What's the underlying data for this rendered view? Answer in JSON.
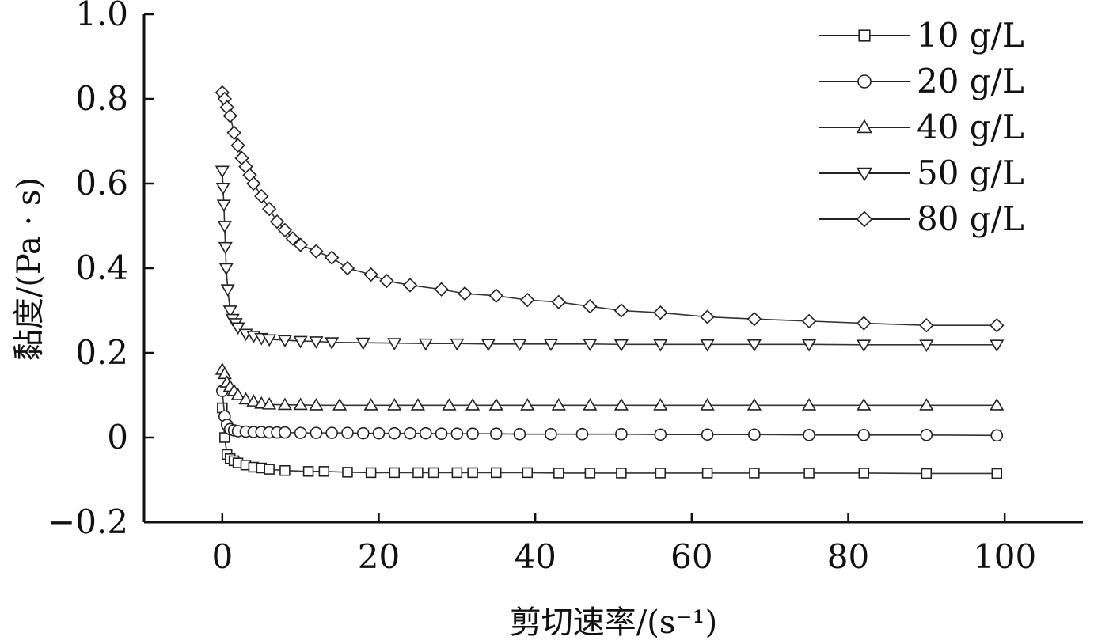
{
  "chart_data": {
    "type": "line",
    "title": "",
    "xlabel": "剪切速率/(s⁻¹)",
    "ylabel": "黏度/(Pa · s)",
    "xlim": [
      -10,
      110
    ],
    "ylim": [
      -0.2,
      1.0
    ],
    "x_ticks": [
      0,
      20,
      40,
      60,
      80,
      100
    ],
    "y_ticks": [
      -0.2,
      0,
      0.2,
      0.4,
      0.6,
      0.8,
      1.0
    ],
    "x_tick_labels": [
      "0",
      "20",
      "40",
      "60",
      "80",
      "100"
    ],
    "y_tick_labels": [
      "−0.2",
      "0",
      "0.2",
      "0.4",
      "0.6",
      "0.8",
      "1.0"
    ],
    "grid": false,
    "legend_position": "top-right",
    "series": [
      {
        "name": "10 g/L",
        "marker": "square",
        "x": [
          0,
          0.3,
          0.6,
          1,
          1.5,
          2,
          3,
          4,
          5,
          6,
          8,
          11,
          13,
          16,
          19,
          22,
          25,
          27,
          30,
          32,
          35,
          39,
          43,
          47,
          51,
          56,
          62,
          68,
          75,
          82,
          90,
          99
        ],
        "y": [
          0.07,
          0.0,
          -0.04,
          -0.05,
          -0.055,
          -0.06,
          -0.065,
          -0.07,
          -0.072,
          -0.075,
          -0.078,
          -0.08,
          -0.08,
          -0.082,
          -0.083,
          -0.083,
          -0.083,
          -0.083,
          -0.083,
          -0.083,
          -0.083,
          -0.083,
          -0.084,
          -0.084,
          -0.084,
          -0.084,
          -0.084,
          -0.084,
          -0.084,
          -0.084,
          -0.085,
          -0.085
        ]
      },
      {
        "name": "20 g/L",
        "marker": "circle",
        "x": [
          0,
          0.3,
          0.6,
          1,
          1.5,
          2,
          3,
          4,
          5,
          6,
          7,
          8,
          10,
          12,
          14,
          16,
          18,
          20,
          22,
          24,
          26,
          28,
          30,
          32,
          35,
          38,
          42,
          46,
          51,
          56,
          62,
          68,
          75,
          82,
          90,
          99
        ],
        "y": [
          0.11,
          0.05,
          0.03,
          0.02,
          0.017,
          0.015,
          0.014,
          0.013,
          0.013,
          0.012,
          0.012,
          0.012,
          0.011,
          0.011,
          0.011,
          0.011,
          0.01,
          0.01,
          0.01,
          0.01,
          0.01,
          0.009,
          0.009,
          0.009,
          0.009,
          0.008,
          0.008,
          0.008,
          0.008,
          0.007,
          0.007,
          0.007,
          0.006,
          0.006,
          0.006,
          0.005
        ]
      },
      {
        "name": "40 g/L",
        "marker": "triangle-up",
        "x": [
          0,
          0.3,
          0.6,
          1,
          1.5,
          2,
          3,
          4,
          5,
          6,
          8,
          10,
          12,
          15,
          19,
          22,
          25,
          29,
          32,
          35,
          39,
          43,
          47,
          51,
          56,
          62,
          68,
          75,
          82,
          90,
          99
        ],
        "y": [
          0.16,
          0.15,
          0.13,
          0.12,
          0.11,
          0.1,
          0.09,
          0.085,
          0.08,
          0.078,
          0.077,
          0.077,
          0.076,
          0.076,
          0.076,
          0.076,
          0.076,
          0.076,
          0.076,
          0.076,
          0.076,
          0.076,
          0.076,
          0.076,
          0.076,
          0.076,
          0.076,
          0.076,
          0.076,
          0.076,
          0.076
        ]
      },
      {
        "name": "50 g/L",
        "marker": "triangle-down",
        "x": [
          0,
          0.1,
          0.2,
          0.3,
          0.4,
          0.5,
          0.7,
          1,
          1.3,
          1.7,
          2,
          3,
          4,
          5,
          6,
          8,
          10,
          12,
          14,
          18,
          22,
          26,
          30,
          34,
          38,
          42,
          47,
          51,
          56,
          62,
          68,
          75,
          82,
          90,
          99
        ],
        "y": [
          0.63,
          0.59,
          0.55,
          0.5,
          0.45,
          0.4,
          0.35,
          0.3,
          0.28,
          0.27,
          0.26,
          0.245,
          0.24,
          0.235,
          0.232,
          0.23,
          0.228,
          0.227,
          0.225,
          0.224,
          0.223,
          0.222,
          0.222,
          0.221,
          0.221,
          0.221,
          0.221,
          0.22,
          0.22,
          0.22,
          0.22,
          0.22,
          0.219,
          0.219,
          0.219
        ]
      },
      {
        "name": "80 g/L",
        "marker": "diamond",
        "x": [
          0,
          0.3,
          0.6,
          1,
          1.5,
          2,
          2.5,
          3,
          3.5,
          4,
          5,
          6,
          7,
          8,
          9,
          10,
          12,
          14,
          16,
          19,
          21,
          24,
          28,
          31,
          35,
          39,
          43,
          47,
          51,
          56,
          62,
          68,
          75,
          82,
          90,
          99
        ],
        "y": [
          0.815,
          0.8,
          0.78,
          0.76,
          0.72,
          0.69,
          0.66,
          0.64,
          0.62,
          0.6,
          0.57,
          0.54,
          0.51,
          0.49,
          0.47,
          0.455,
          0.44,
          0.425,
          0.4,
          0.385,
          0.37,
          0.36,
          0.35,
          0.34,
          0.335,
          0.325,
          0.32,
          0.31,
          0.3,
          0.295,
          0.285,
          0.28,
          0.275,
          0.27,
          0.265,
          0.265
        ]
      }
    ]
  }
}
